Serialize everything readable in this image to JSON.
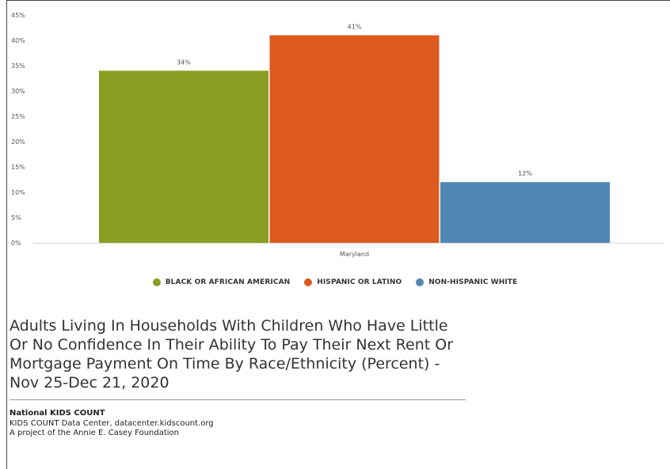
{
  "chart_data": {
    "type": "bar",
    "categories": [
      "Maryland"
    ],
    "series": [
      {
        "name": "BLACK OR AFRICAN AMERICAN",
        "values": [
          34
        ],
        "label": "34%",
        "color": "#8a9e24"
      },
      {
        "name": "HISPANIC OR LATINO",
        "values": [
          41
        ],
        "label": "41%",
        "color": "#dd5b1e"
      },
      {
        "name": "NON-HISPANIC WHITE",
        "values": [
          12
        ],
        "label": "12%",
        "color": "#4f88b5"
      }
    ],
    "ylim": [
      0,
      45
    ],
    "yticks": [
      "0%",
      "5%",
      "10%",
      "15%",
      "20%",
      "25%",
      "30%",
      "35%",
      "40%",
      "45%"
    ],
    "grid": false,
    "legend_position": "bottom",
    "title": "Adults Living In Households With Children Who Have Little Or No Confidence In Their Ability To Pay Their Next Rent Or Mortgage Payment On Time By Race/Ethnicity (Percent) - Nov 25-Dec 21, 2020"
  },
  "source": {
    "org": "National KIDS COUNT",
    "line1": "KIDS COUNT Data Center, datacenter.kidscount.org",
    "line2": "A project of the Annie E. Casey Foundation"
  }
}
